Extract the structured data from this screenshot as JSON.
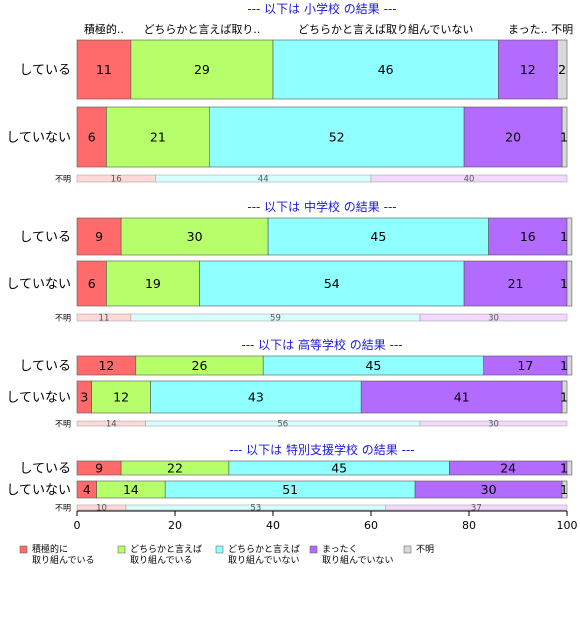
{
  "chart_data": {
    "type": "bar",
    "orientation": "horizontal",
    "stacked": true,
    "xlim": [
      0,
      100
    ],
    "xticks": [
      0,
      20,
      40,
      60,
      80,
      100
    ],
    "column_headers": [
      "積極的..",
      "どちらかと言えば取り..",
      "どちらかと言えば取り組んでいない",
      "まった..",
      "不明"
    ],
    "legend": {
      "placement": "bottom",
      "items": [
        {
          "line1": "積極的に",
          "line2": "取り組んでいる",
          "color": "#ff6b6b"
        },
        {
          "line1": "どちらかと言えば",
          "line2": "取り組んでいる",
          "color": "#b6ff6b"
        },
        {
          "line1": "どちらかと言えば",
          "line2": "取り組んでいない",
          "color": "#8fffff"
        },
        {
          "line1": "まったく",
          "line2": "取り組んでいない",
          "color": "#b36bff"
        },
        {
          "line1": "不明",
          "line2": "",
          "color": "#d9d9d9"
        }
      ]
    },
    "unknown_label": "不明",
    "unknown_colors": [
      "#ffd8d8",
      "#d8ffff",
      "#f2d8ff"
    ],
    "panels": [
      {
        "title": "--- 以下は 小学校 の結果 ---",
        "rows": [
          {
            "label": "している",
            "values": [
              11,
              29,
              46,
              12,
              2
            ]
          },
          {
            "label": "していない",
            "values": [
              6,
              21,
              52,
              20,
              1
            ]
          }
        ],
        "unknown_values": [
          16,
          44,
          40
        ]
      },
      {
        "title": "--- 以下は 中学校 の結果 ---",
        "rows": [
          {
            "label": "している",
            "values": [
              9,
              30,
              45,
              16,
              1
            ]
          },
          {
            "label": "していない",
            "values": [
              6,
              19,
              54,
              21,
              1
            ]
          }
        ],
        "unknown_values": [
          11,
          59,
          30
        ]
      },
      {
        "title": "--- 以下は 高等学校 の結果 ---",
        "rows": [
          {
            "label": "している",
            "values": [
              12,
              26,
              45,
              17,
              1
            ]
          },
          {
            "label": "していない",
            "values": [
              3,
              12,
              43,
              41,
              1
            ]
          }
        ],
        "unknown_values": [
          14,
          56,
          30
        ]
      },
      {
        "title": "--- 以下は 特別支援学校 の結果 ---",
        "rows": [
          {
            "label": "している",
            "values": [
              9,
              22,
              45,
              24,
              1
            ]
          },
          {
            "label": "していない",
            "values": [
              4,
              14,
              51,
              30,
              1
            ]
          }
        ],
        "unknown_values": [
          10,
          53,
          37
        ]
      }
    ]
  }
}
